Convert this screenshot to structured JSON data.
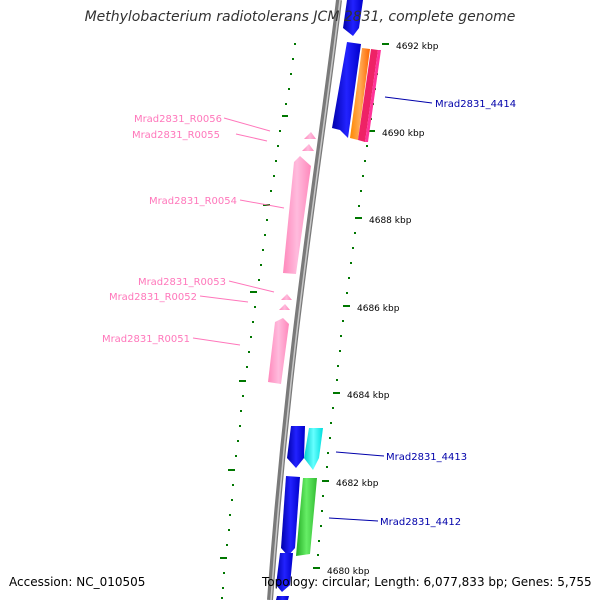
{
  "title": "Methylobacterium radiotolerans JCM 2831, complete genome",
  "accession": "Accession: NC_010505",
  "topology": "Topology: circular; Length: 6,077,833 bp; Genes: 5,755",
  "colors": {
    "backbone": "#808080",
    "rna": "#ff99cc",
    "cds": "#0000ff",
    "gene_link": "#0000aa",
    "rna_link": "#ff77bb",
    "tick": "#006600"
  },
  "scale_labels": [
    "4692 kbp",
    "4690 kbp",
    "4688 kbp",
    "4686 kbp",
    "4684 kbp",
    "4682 kbp",
    "4680 kbp"
  ],
  "gene_labels": [
    "Mrad2831_4414",
    "Mrad2831_4413",
    "Mrad2831_4412"
  ],
  "rna_labels": [
    "Mrad2831_R0056",
    "Mrad2831_R0055",
    "Mrad2831_R0054",
    "Mrad2831_R0053",
    "Mrad2831_R0052",
    "Mrad2831_R0051"
  ]
}
